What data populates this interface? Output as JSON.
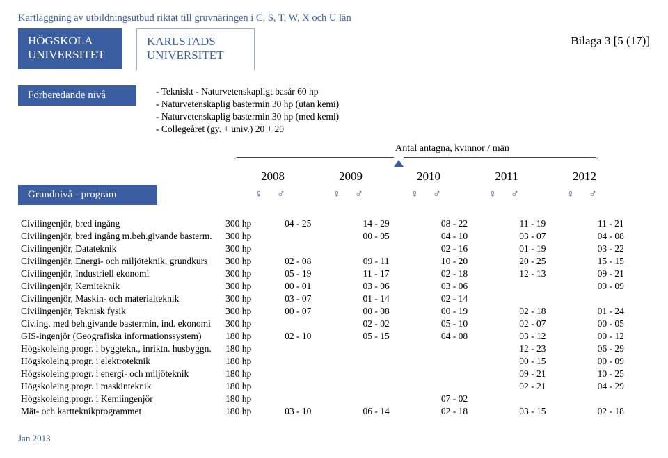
{
  "headerColor": "#3b5ea3",
  "topTitle": "Kartläggning av utbildningsutbud riktat till gruvnäringen i C, S, T, W, X och U län",
  "uniLeft": {
    "l1": "HÖGSKOLA",
    "l2": "UNIVERSITET"
  },
  "uniMid": {
    "l1": "KARLSTADS",
    "l2": "UNIVERSITET"
  },
  "bilaga": "Bilaga 3 [5 (17)]",
  "prepLabel": "Förberedande nivå",
  "prepLines": [
    "- Tekniskt - Naturvetenskapligt basår  60 hp",
    "- Naturvetenskaplig bastermin   30 hp (utan kemi)",
    "- Naturvetenskaplig bastermin   30 hp (med kemi)",
    "- Collegeåret (gy. + univ.)   20 + 20"
  ],
  "antalLabel": "Antal antagna, kvinnor / män",
  "years": [
    "2008",
    "2009",
    "2010",
    "2011",
    "2012"
  ],
  "grundLabel": "Grundnivå - program",
  "genderGlyphs": "♀   ♂",
  "rows": [
    {
      "name": "Civilingenjör, bred ingång",
      "hp": "300 hp",
      "y": [
        "04 - 25",
        "14 - 29",
        "08 - 22",
        "11 - 19",
        "11 - 21"
      ]
    },
    {
      "name": "Civilingenjör, bred ingång m.beh.givande basterm.",
      "hp": "300 hp",
      "y": [
        "",
        "00 - 05",
        "04 - 10",
        "03 - 07",
        "04 - 08"
      ]
    },
    {
      "name": "Civilingenjör, Datateknik",
      "hp": "300 hp",
      "y": [
        "",
        "",
        "02 - 16",
        "01 - 19",
        "03 - 22"
      ]
    },
    {
      "name": "Civilingenjör, Energi- och miljöteknik, grundkurs",
      "hp": "300 hp",
      "y": [
        "02 - 08",
        "09 - 11",
        "10 - 20",
        "20 - 25",
        "15 - 15"
      ]
    },
    {
      "name": "Civilingenjör, Industriell ekonomi",
      "hp": "300 hp",
      "y": [
        "05 - 19",
        "11 - 17",
        "02 - 18",
        "12 - 13",
        "09 - 21"
      ]
    },
    {
      "name": "Civilingenjör, Kemiteknik",
      "hp": "300 hp",
      "y": [
        "00 - 01",
        "03 - 06",
        "03 - 06",
        "",
        "09 - 09"
      ]
    },
    {
      "name": "Civilingenjör, Maskin- och materialteknik",
      "hp": "300 hp",
      "y": [
        "03 - 07",
        "01 - 14",
        "02 - 14",
        "",
        ""
      ]
    },
    {
      "name": "Civilingenjör, Teknisk fysik",
      "hp": "300 hp",
      "y": [
        "00 - 07",
        "00 - 08",
        "00 - 19",
        "02 - 18",
        "01 - 24"
      ]
    },
    {
      "name": "Civ.ing. med beh.givande bastermin, ind. ekonomi",
      "hp": "300 hp",
      "y": [
        "",
        "02 - 02",
        "05 - 10",
        "02 - 07",
        "00 - 05"
      ]
    },
    {
      "name": "GIS-ingenjör (Geografiska informationssystem)",
      "hp": "180 hp",
      "y": [
        "02 - 10",
        "05 - 15",
        "04 - 08",
        "03 - 12",
        "00 - 12"
      ]
    },
    {
      "name": "Högskoleing.progr. i byggtekn., inriktn. husbyggn.",
      "hp": "180 hp",
      "y": [
        "",
        "",
        "",
        "12 - 23",
        "06 - 29"
      ]
    },
    {
      "name": "Högskoleing.progr. i elektroteknik",
      "hp": "180 hp",
      "y": [
        "",
        "",
        "",
        "00 - 15",
        "00 - 09"
      ]
    },
    {
      "name": "Högskoleing.progr. i energi- och miljöteknik",
      "hp": "180 hp",
      "y": [
        "",
        "",
        "",
        "09 - 21",
        "10 - 25"
      ]
    },
    {
      "name": "Högskoleing.progr. i maskinteknik",
      "hp": "180 hp",
      "y": [
        "",
        "",
        "",
        "02 - 21",
        "04 - 29"
      ]
    },
    {
      "name": "Högskoleing.progr. i Kemiingenjör",
      "hp": "180 hp",
      "y": [
        "",
        "",
        "07 - 02",
        "",
        ""
      ]
    },
    {
      "name": "Mät- och kartteknikprogrammet",
      "hp": "180 hp",
      "y": [
        "03 - 10",
        "06 - 14",
        "02 - 18",
        "03 - 15",
        "02 - 18"
      ]
    }
  ],
  "footer": "Jan 2013"
}
